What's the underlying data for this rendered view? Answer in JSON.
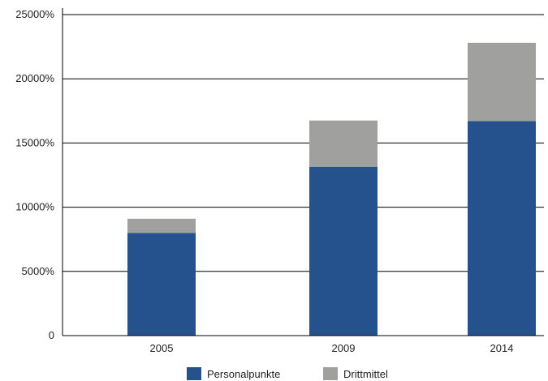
{
  "chart_data": {
    "type": "bar",
    "stacked": true,
    "categories": [
      "2005",
      "2009",
      "2014"
    ],
    "series": [
      {
        "name": "Personalpunkte",
        "values": [
          8000,
          13150,
          16700
        ],
        "color": "#25528c"
      },
      {
        "name": "Drittmittel",
        "values": [
          1100,
          3600,
          6100
        ],
        "color": "#a0a09f"
      }
    ],
    "y_ticks": [
      "0",
      "5000%",
      "10000%",
      "15000%",
      "20000%",
      "25000%"
    ],
    "ylim": [
      0,
      25000
    ],
    "grid": "horizontal",
    "legend": "bottom-center"
  }
}
